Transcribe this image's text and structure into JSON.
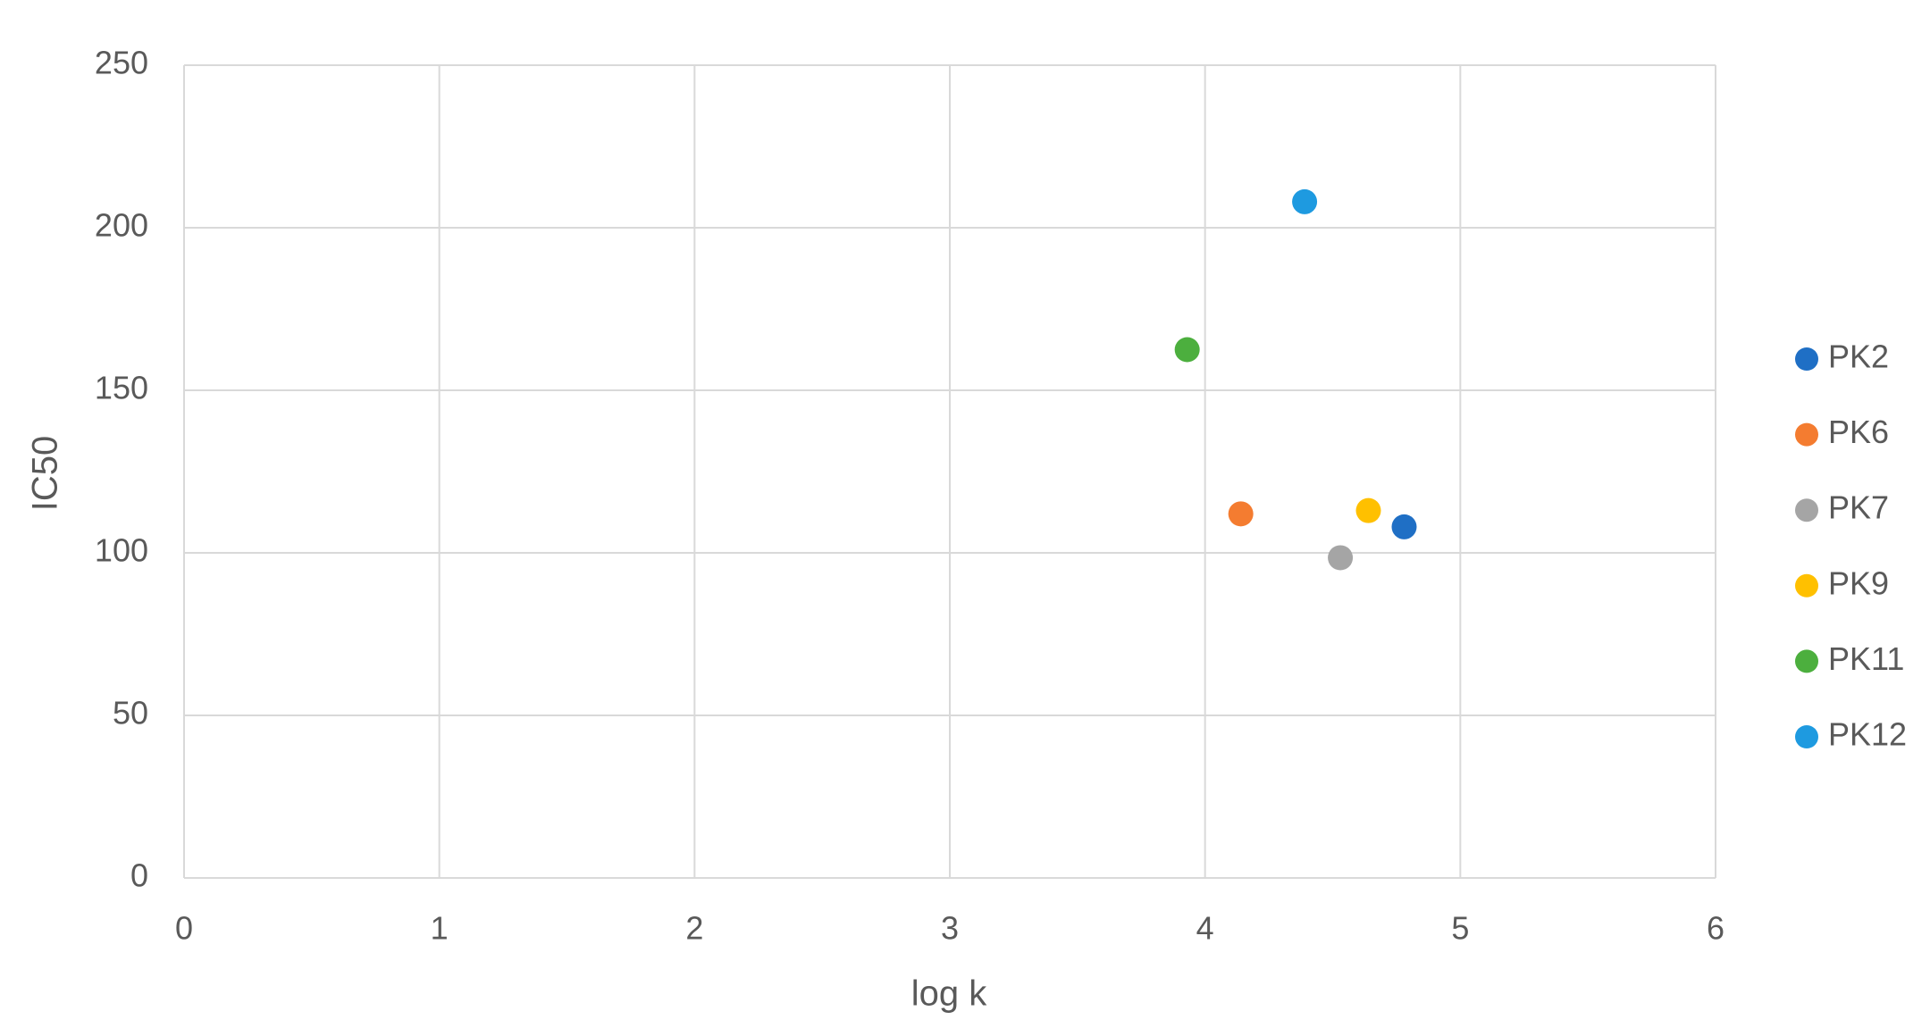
{
  "chart_data": {
    "type": "scatter",
    "x_label": "log k",
    "y_label": "IC50",
    "xlim": [
      0,
      6
    ],
    "xticks": [
      0,
      1,
      2,
      3,
      4,
      5,
      6
    ],
    "ylim": [
      0,
      250
    ],
    "yticks": [
      0,
      50,
      100,
      150,
      200,
      250
    ],
    "grid": true,
    "legend": "right",
    "series": [
      {
        "name": "PK2",
        "color": "#1f6fc5",
        "x": [
          4.78
        ],
        "y": [
          108
        ]
      },
      {
        "name": "PK6",
        "color": "#f47c30",
        "x": [
          4.14
        ],
        "y": [
          112
        ]
      },
      {
        "name": "PK7",
        "color": "#a5a5a5",
        "x": [
          4.53
        ],
        "y": [
          98.5
        ]
      },
      {
        "name": "PK9",
        "color": "#ffc000",
        "x": [
          4.64
        ],
        "y": [
          113
        ]
      },
      {
        "name": "PK11",
        "color": "#4caf3e",
        "x": [
          3.93
        ],
        "y": [
          162.5
        ]
      },
      {
        "name": "PK12",
        "color": "#1e9ae0",
        "x": [
          4.39
        ],
        "y": [
          208
        ]
      }
    ]
  }
}
